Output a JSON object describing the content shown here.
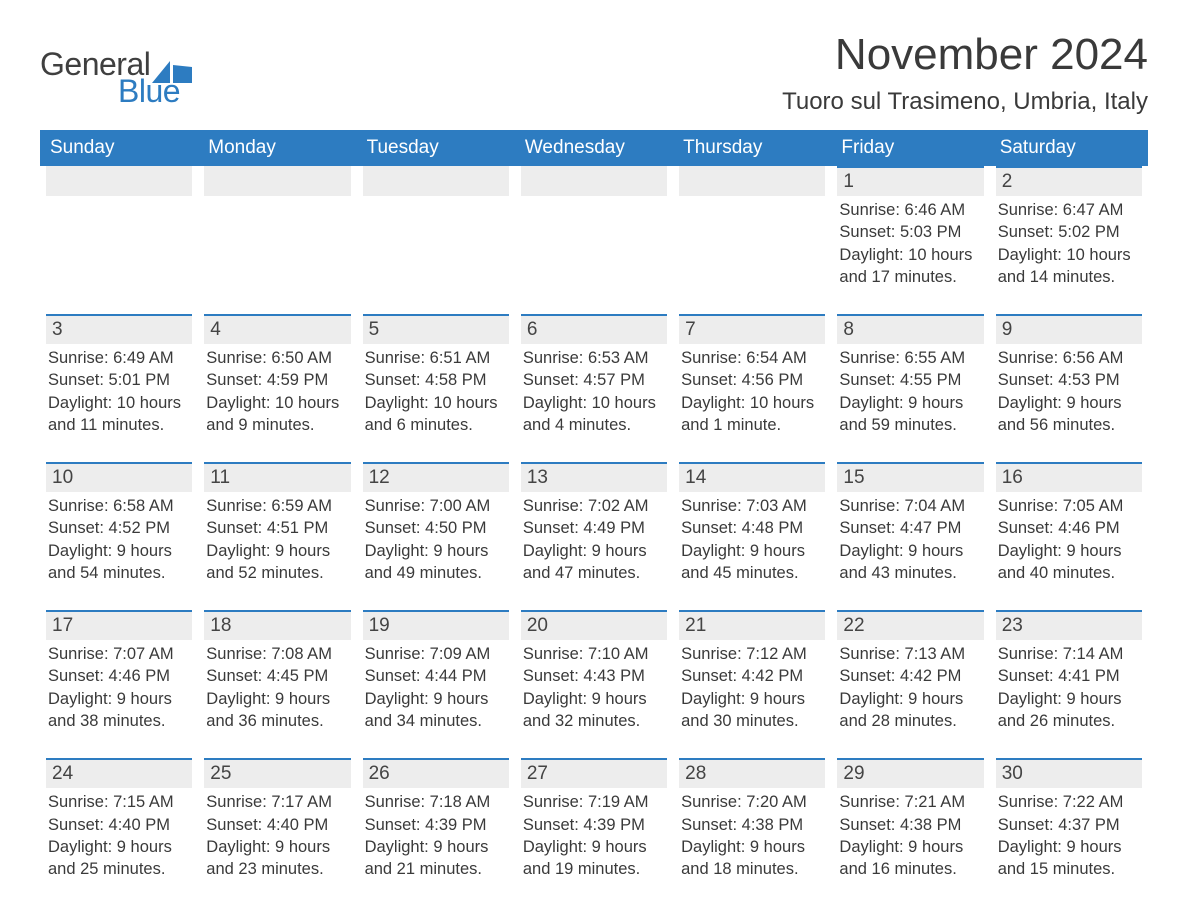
{
  "brand": {
    "word1": "General",
    "word2": "Blue",
    "iconColor": "#2d7cc1"
  },
  "title": "November 2024",
  "location": "Tuoro sul Trasimeno, Umbria, Italy",
  "colors": {
    "headerBg": "#2d7cc1",
    "headerText": "#ffffff",
    "cellTopBorder": "#2d7cc1",
    "dayBarBg": "#ededed",
    "bodyText": "#3a3a3a",
    "pageBg": "#ffffff"
  },
  "typography": {
    "titleFontSize": 44,
    "locationFontSize": 24,
    "weekdayFontSize": 19,
    "dayNumFontSize": 19,
    "bodyFontSize": 16.5,
    "fontFamily": "Arial"
  },
  "layout": {
    "columns": 7,
    "rows": 5
  },
  "weekdays": [
    "Sunday",
    "Monday",
    "Tuesday",
    "Wednesday",
    "Thursday",
    "Friday",
    "Saturday"
  ],
  "weeks": [
    [
      {
        "day": null
      },
      {
        "day": null
      },
      {
        "day": null
      },
      {
        "day": null
      },
      {
        "day": null
      },
      {
        "day": 1,
        "sunrise": "6:46 AM",
        "sunset": "5:03 PM",
        "daylight": "10 hours and 17 minutes."
      },
      {
        "day": 2,
        "sunrise": "6:47 AM",
        "sunset": "5:02 PM",
        "daylight": "10 hours and 14 minutes."
      }
    ],
    [
      {
        "day": 3,
        "sunrise": "6:49 AM",
        "sunset": "5:01 PM",
        "daylight": "10 hours and 11 minutes."
      },
      {
        "day": 4,
        "sunrise": "6:50 AM",
        "sunset": "4:59 PM",
        "daylight": "10 hours and 9 minutes."
      },
      {
        "day": 5,
        "sunrise": "6:51 AM",
        "sunset": "4:58 PM",
        "daylight": "10 hours and 6 minutes."
      },
      {
        "day": 6,
        "sunrise": "6:53 AM",
        "sunset": "4:57 PM",
        "daylight": "10 hours and 4 minutes."
      },
      {
        "day": 7,
        "sunrise": "6:54 AM",
        "sunset": "4:56 PM",
        "daylight": "10 hours and 1 minute."
      },
      {
        "day": 8,
        "sunrise": "6:55 AM",
        "sunset": "4:55 PM",
        "daylight": "9 hours and 59 minutes."
      },
      {
        "day": 9,
        "sunrise": "6:56 AM",
        "sunset": "4:53 PM",
        "daylight": "9 hours and 56 minutes."
      }
    ],
    [
      {
        "day": 10,
        "sunrise": "6:58 AM",
        "sunset": "4:52 PM",
        "daylight": "9 hours and 54 minutes."
      },
      {
        "day": 11,
        "sunrise": "6:59 AM",
        "sunset": "4:51 PM",
        "daylight": "9 hours and 52 minutes."
      },
      {
        "day": 12,
        "sunrise": "7:00 AM",
        "sunset": "4:50 PM",
        "daylight": "9 hours and 49 minutes."
      },
      {
        "day": 13,
        "sunrise": "7:02 AM",
        "sunset": "4:49 PM",
        "daylight": "9 hours and 47 minutes."
      },
      {
        "day": 14,
        "sunrise": "7:03 AM",
        "sunset": "4:48 PM",
        "daylight": "9 hours and 45 minutes."
      },
      {
        "day": 15,
        "sunrise": "7:04 AM",
        "sunset": "4:47 PM",
        "daylight": "9 hours and 43 minutes."
      },
      {
        "day": 16,
        "sunrise": "7:05 AM",
        "sunset": "4:46 PM",
        "daylight": "9 hours and 40 minutes."
      }
    ],
    [
      {
        "day": 17,
        "sunrise": "7:07 AM",
        "sunset": "4:46 PM",
        "daylight": "9 hours and 38 minutes."
      },
      {
        "day": 18,
        "sunrise": "7:08 AM",
        "sunset": "4:45 PM",
        "daylight": "9 hours and 36 minutes."
      },
      {
        "day": 19,
        "sunrise": "7:09 AM",
        "sunset": "4:44 PM",
        "daylight": "9 hours and 34 minutes."
      },
      {
        "day": 20,
        "sunrise": "7:10 AM",
        "sunset": "4:43 PM",
        "daylight": "9 hours and 32 minutes."
      },
      {
        "day": 21,
        "sunrise": "7:12 AM",
        "sunset": "4:42 PM",
        "daylight": "9 hours and 30 minutes."
      },
      {
        "day": 22,
        "sunrise": "7:13 AM",
        "sunset": "4:42 PM",
        "daylight": "9 hours and 28 minutes."
      },
      {
        "day": 23,
        "sunrise": "7:14 AM",
        "sunset": "4:41 PM",
        "daylight": "9 hours and 26 minutes."
      }
    ],
    [
      {
        "day": 24,
        "sunrise": "7:15 AM",
        "sunset": "4:40 PM",
        "daylight": "9 hours and 25 minutes."
      },
      {
        "day": 25,
        "sunrise": "7:17 AM",
        "sunset": "4:40 PM",
        "daylight": "9 hours and 23 minutes."
      },
      {
        "day": 26,
        "sunrise": "7:18 AM",
        "sunset": "4:39 PM",
        "daylight": "9 hours and 21 minutes."
      },
      {
        "day": 27,
        "sunrise": "7:19 AM",
        "sunset": "4:39 PM",
        "daylight": "9 hours and 19 minutes."
      },
      {
        "day": 28,
        "sunrise": "7:20 AM",
        "sunset": "4:38 PM",
        "daylight": "9 hours and 18 minutes."
      },
      {
        "day": 29,
        "sunrise": "7:21 AM",
        "sunset": "4:38 PM",
        "daylight": "9 hours and 16 minutes."
      },
      {
        "day": 30,
        "sunrise": "7:22 AM",
        "sunset": "4:37 PM",
        "daylight": "9 hours and 15 minutes."
      }
    ]
  ],
  "labels": {
    "sunrise": "Sunrise:",
    "sunset": "Sunset:",
    "daylight": "Daylight:"
  }
}
